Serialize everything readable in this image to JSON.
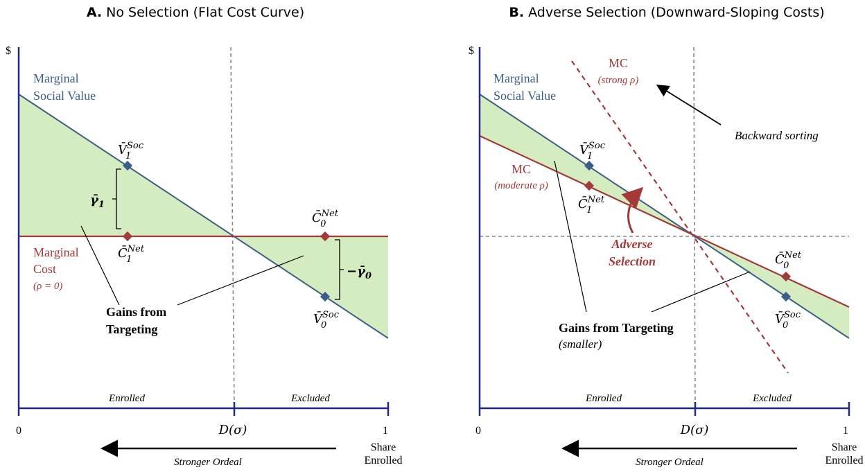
{
  "panel_a": {
    "title_letter": "A.",
    "title_rest": "No Selection (Flat Cost Curve)",
    "y_axis_label": "$",
    "msv_label_1": "Marginal",
    "msv_label_2": "Social Value",
    "mc_label_1": "Marginal",
    "mc_label_2": "Cost",
    "mc_label_3": "(ρ = 0)",
    "v1_base": "V̄",
    "v1_sub": "1",
    "v1_sup": "Soc",
    "c1_base": "C̄",
    "c1_sub": "1",
    "c1_sup": "Net",
    "c0_base": "C̄",
    "c0_sub": "0",
    "c0_sup": "Net",
    "v0_base": "V̄",
    "v0_sub": "0",
    "v0_sup": "Soc",
    "gamma1": "γ̄",
    "gamma1_sub": "1",
    "gamma0": "−γ̄",
    "gamma0_sub": "0",
    "gains_1": "Gains from",
    "gains_2": "Targeting",
    "enrolled": "Enrolled",
    "excluded": "Excluded",
    "x_zero": "0",
    "x_one": "1",
    "x_d": "D(σ)",
    "share_1": "Share",
    "share_2": "Enrolled",
    "ordeal": "Stronger Ordeal"
  },
  "panel_b": {
    "title_letter": "B.",
    "title_rest": "Adverse Selection (Downward-Sloping Costs)",
    "y_axis_label": "$",
    "msv_label_1": "Marginal",
    "msv_label_2": "Social Value",
    "mc_strong_1": "MC",
    "mc_strong_2": "(strong ρ)",
    "mc_mod_1": "MC",
    "mc_mod_2": "(moderate ρ)",
    "backward": "Backward sorting",
    "adverse_1": "Adverse",
    "adverse_2": "Selection",
    "v1_base": "V̄",
    "v1_sub": "1",
    "v1_sup": "Soc",
    "c1_base": "C̄",
    "c1_sub": "1",
    "c1_sup": "Net",
    "c0_base": "C̄",
    "c0_sub": "0",
    "c0_sup": "Net",
    "v0_base": "V̄",
    "v0_sub": "0",
    "v0_sup": "Soc",
    "gains_1": "Gains from Targeting",
    "gains_2": "(smaller)",
    "enrolled": "Enrolled",
    "excluded": "Excluded",
    "x_zero": "0",
    "x_one": "1",
    "x_d": "D(σ)",
    "share_1": "Share",
    "share_2": "Enrolled",
    "ordeal": "Stronger Ordeal"
  },
  "colors": {
    "blue": "#3b5f86",
    "red": "#a33a3a",
    "fill": "#d4ecbf",
    "axis": "#1f2a80"
  }
}
